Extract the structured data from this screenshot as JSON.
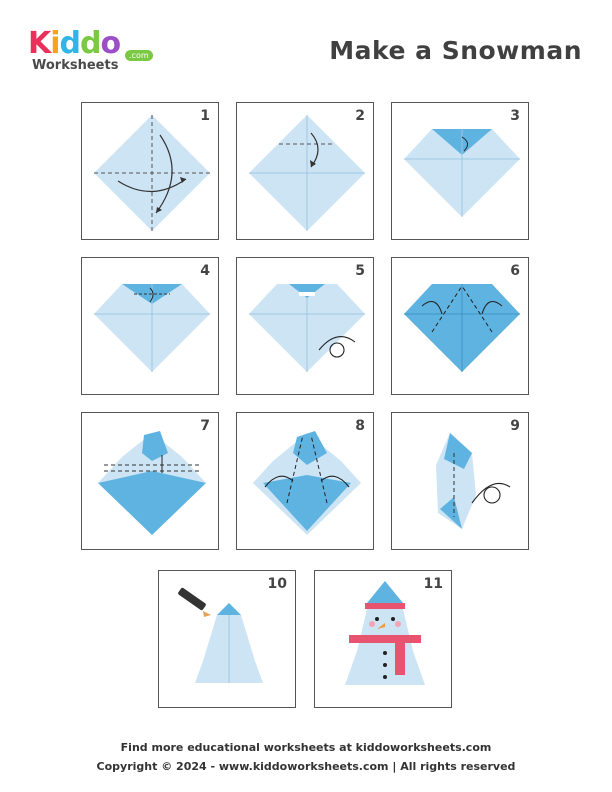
{
  "brand": {
    "letters": [
      "K",
      "i",
      "d",
      "d",
      "o"
    ],
    "letter_colors": [
      "#e8305a",
      "#f7a31c",
      "#2fb5e6",
      "#7ac943",
      "#9b4fc7"
    ],
    "subtitle": "Worksheets",
    "domain": ".com"
  },
  "title": "Make a Snowman",
  "colors": {
    "paper_light": "#cde4f5",
    "paper_mid": "#a9d3ef",
    "paper_dark": "#5fb3e0",
    "scarf": "#e8536f",
    "border": "#555555"
  },
  "steps": [
    {
      "number": "1"
    },
    {
      "number": "2"
    },
    {
      "number": "3"
    },
    {
      "number": "4"
    },
    {
      "number": "5"
    },
    {
      "number": "6"
    },
    {
      "number": "7"
    },
    {
      "number": "8"
    },
    {
      "number": "9"
    },
    {
      "number": "10"
    },
    {
      "number": "11"
    }
  ],
  "footer": {
    "line1": "Find more educational worksheets at kiddoworksheets.com",
    "line2": "Copyright © 2024 - www.kiddoworksheets.com  |  All rights reserved"
  }
}
